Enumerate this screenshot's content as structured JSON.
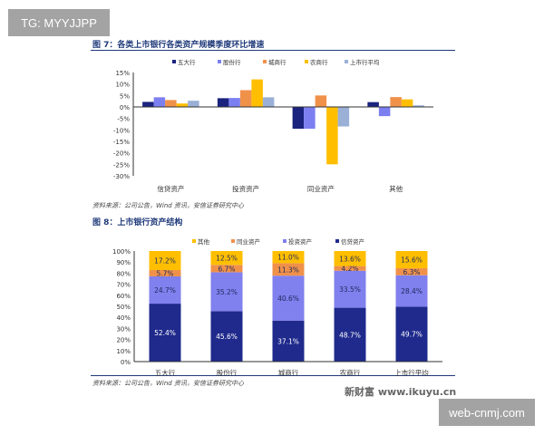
{
  "overlay": {
    "top_left": "TG: MYYJJPP",
    "bottom_right": "web-cnmj.com"
  },
  "figure7": {
    "title": "图 7：各类上市银行各类资产规模季度环比增速",
    "source": "资料来源：公司公告，Wind 资讯，安信证券研究中心"
  },
  "figure8": {
    "title": "图 8：上市银行资产结构",
    "source": "资料来源：公司公告，Wind 资讯，安信证券研究中心"
  },
  "watermark": "新财富 www.ikuyu.cn",
  "chart_data": [
    {
      "type": "bar",
      "categories": [
        "信贷资产",
        "投资资产",
        "同业资产",
        "其他"
      ],
      "series": [
        {
          "name": "五大行",
          "color": "#1a237e",
          "values": [
            2.2,
            3.8,
            -9.5,
            2.1
          ]
        },
        {
          "name": "股份行",
          "color": "#7b7ff0",
          "values": [
            4.2,
            3.9,
            -9.5,
            -4.0
          ]
        },
        {
          "name": "城商行",
          "color": "#f0914a",
          "values": [
            3.0,
            7.3,
            5.0,
            4.3
          ]
        },
        {
          "name": "农商行",
          "color": "#ffbf00",
          "values": [
            1.5,
            12.0,
            -25.0,
            3.3
          ]
        },
        {
          "name": "上市行平均",
          "color": "#9bb0d6",
          "values": [
            2.7,
            4.2,
            -8.5,
            0.7
          ]
        }
      ],
      "ylim": [
        -30,
        15
      ],
      "yticks": [
        "15%",
        "10%",
        "5%",
        "0%",
        "-5%",
        "-10%",
        "-15%",
        "-20%",
        "-25%",
        "-30%"
      ],
      "legend": "top",
      "grid": false
    },
    {
      "type": "stacked-bar",
      "categories": [
        "五大行",
        "股份行",
        "城商行",
        "农商行",
        "上市行平均"
      ],
      "series": [
        {
          "name": "信贷资产",
          "color": "#1f2a8c",
          "label_color": "#ffffff",
          "values": [
            52.4,
            45.6,
            37.1,
            48.7,
            49.7
          ],
          "labels": [
            "52.4%",
            "45.6%",
            "37.1%",
            "48.7%",
            "49.7%"
          ]
        },
        {
          "name": "投资资产",
          "color": "#8080ee",
          "label_color": "#1f2a5c",
          "values": [
            24.7,
            35.2,
            40.6,
            33.5,
            28.4
          ],
          "labels": [
            "24.7%",
            "35.2%",
            "40.6%",
            "33.5%",
            "28.4%"
          ]
        },
        {
          "name": "同业资产",
          "color": "#f0914a",
          "label_color": "#1f2a5c",
          "values": [
            5.7,
            6.7,
            11.3,
            4.2,
            6.3
          ],
          "labels": [
            "5.7%",
            "6.7%",
            "11.3%",
            "4.2%",
            "6.3%"
          ]
        },
        {
          "name": "其他",
          "color": "#ffbf00",
          "label_color": "#1f2a5c",
          "values": [
            17.2,
            12.5,
            11.0,
            13.6,
            15.6
          ],
          "labels": [
            "17.2%",
            "12.5%",
            "11.0%",
            "13.6%",
            "15.6%"
          ]
        }
      ],
      "legend_order": [
        "其他",
        "同业资产",
        "投资资产",
        "信贷资产"
      ],
      "ylim": [
        0,
        100
      ],
      "yticks": [
        "0%",
        "10%",
        "20%",
        "30%",
        "40%",
        "50%",
        "60%",
        "70%",
        "80%",
        "90%",
        "100%"
      ],
      "legend": "top",
      "grid": false
    }
  ]
}
